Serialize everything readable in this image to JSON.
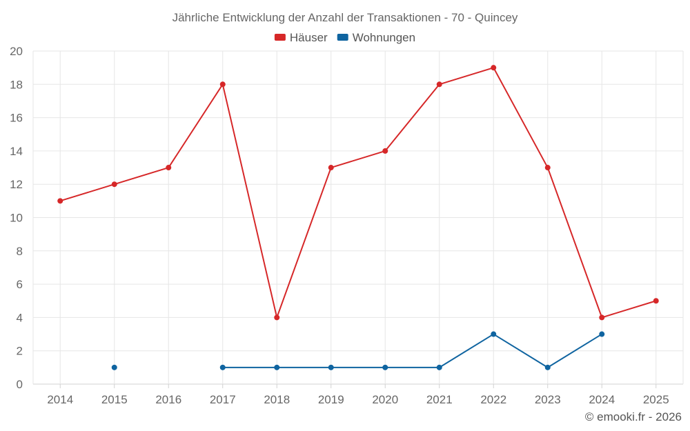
{
  "chart_data": {
    "type": "line",
    "title": "Jährliche Entwicklung der Anzahl der Transaktionen - 70 - Quincey",
    "x": [
      "2014",
      "2015",
      "2016",
      "2017",
      "2018",
      "2019",
      "2020",
      "2021",
      "2022",
      "2023",
      "2024",
      "2025"
    ],
    "series": [
      {
        "name": "Häuser",
        "color": "#d62728",
        "values": [
          11,
          12,
          13,
          18,
          4,
          13,
          14,
          18,
          19,
          13,
          4,
          5
        ]
      },
      {
        "name": "Wohnungen",
        "color": "#0f64a0",
        "values": [
          null,
          1,
          null,
          1,
          1,
          1,
          1,
          1,
          3,
          1,
          3,
          null
        ]
      }
    ],
    "ylim": [
      0,
      20
    ],
    "yticks": [
      0,
      2,
      4,
      6,
      8,
      10,
      12,
      14,
      16,
      18,
      20
    ],
    "grid": true,
    "legend": "top-center"
  },
  "credit": "© emooki.fr - 2026"
}
